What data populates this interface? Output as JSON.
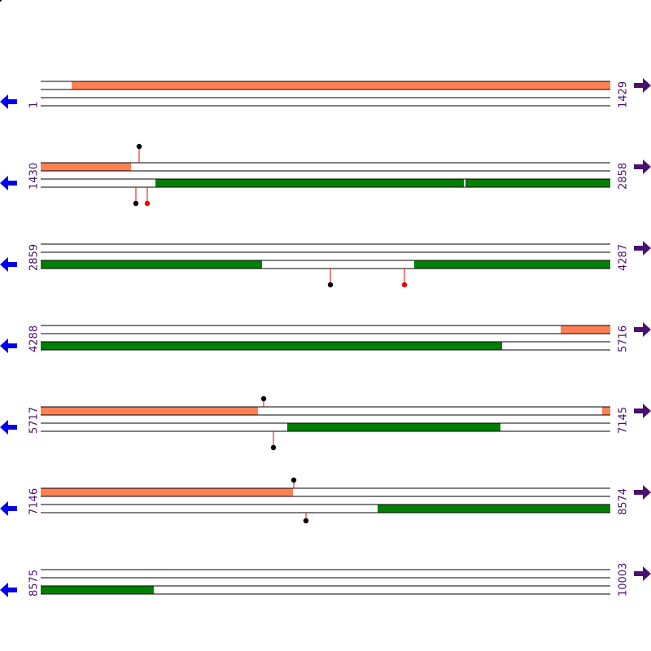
{
  "rows": [
    {
      "start": "1",
      "end": "1429"
    },
    {
      "start": "1430",
      "end": "2858"
    },
    {
      "start": "2859",
      "end": "4287"
    },
    {
      "start": "4288",
      "end": "5716"
    },
    {
      "start": "5717",
      "end": "7145"
    },
    {
      "start": "7146",
      "end": "8574"
    },
    {
      "start": "8575",
      "end": "10003"
    }
  ]
}
